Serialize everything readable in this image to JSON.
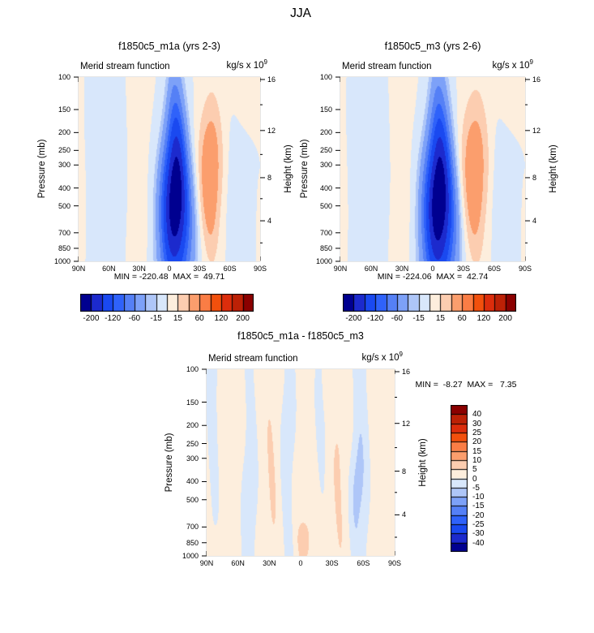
{
  "chart_data": {
    "type": "heatmap",
    "suptitle": "JJA",
    "xlabel_ticks": [
      "90N",
      "60N",
      "30N",
      "0",
      "30S",
      "60S",
      "90S"
    ],
    "pressure_ticks": [
      "100",
      "150",
      "200",
      "250",
      "300",
      "400",
      "500",
      "700",
      "850",
      "1000"
    ],
    "height_ticks": [
      "16",
      "12",
      "8",
      "4"
    ],
    "palette": [
      "#000090",
      "#1c2acd",
      "#1a49f0",
      "#2f62fa",
      "#5580f6",
      "#7da1f8",
      "#aec6f8",
      "#d8e7fb",
      "#fdeedd",
      "#fccdb0",
      "#fb9e6d",
      "#fa7d45",
      "#f2500d",
      "#dc2d0c",
      "#bc2106",
      "#8b0000"
    ],
    "colorbar_main_labels": [
      "-200",
      "-120",
      "-60",
      "-15",
      "15",
      "60",
      "120",
      "200"
    ],
    "colorbar_diff_labels": [
      "40",
      "30",
      "25",
      "20",
      "15",
      "10",
      "5",
      "0",
      "-5",
      "-10",
      "-15",
      "-20",
      "-25",
      "-30",
      "-40"
    ],
    "panels": [
      {
        "title": "f1850c5_m1a (yrs 2-3)",
        "field_title": "Merid stream function",
        "units": "kg/s x 10",
        "units_exp": "9",
        "ylabel": "Pressure (mb)",
        "ylabel_right": "Height (km)",
        "min": -220.48,
        "max": 49.71,
        "minmax_label": "MIN = -220.48  MAX =  49.71",
        "levels": [
          -200,
          -160,
          -120,
          -90,
          -60,
          -30,
          -15,
          0,
          15,
          30,
          60,
          90,
          120,
          160,
          200
        ],
        "wobble": 1.0,
        "cells": [
          [
            -238,
            -6,
            9,
            0.65,
            0.52,
            6
          ],
          [
            52,
            -41,
            11,
            0.55,
            0.42,
            0
          ],
          [
            -9,
            62,
            20,
            0.5,
            10,
            0
          ],
          [
            9,
            33,
            10,
            0.5,
            10,
            0
          ],
          [
            8,
            90,
            6,
            0.5,
            10,
            0
          ],
          [
            -9,
            -70,
            14,
            0.65,
            0.42,
            0
          ],
          [
            6,
            -76,
            16,
            0.05,
            0.32,
            0
          ],
          [
            7,
            -90,
            3.5,
            0.9,
            0.25,
            0
          ],
          [
            -8,
            -64,
            5,
            0.6,
            0.25,
            0
          ]
        ]
      },
      {
        "title": "f1850c5_m3 (yrs 2-6)",
        "field_title": "Merid stream function",
        "units": "kg/s x 10",
        "units_exp": "9",
        "ylabel": "Pressure (mb)",
        "ylabel_right": "Height (km)",
        "min": -224.06,
        "max": 42.74,
        "minmax_label": "MIN = -224.06  MAX =  42.74",
        "levels": [
          -200,
          -160,
          -120,
          -90,
          -60,
          -30,
          -15,
          0,
          15,
          30,
          60,
          90,
          120,
          160,
          200
        ],
        "wobble": 1.0,
        "cells": [
          [
            -242,
            -6,
            9.5,
            0.66,
            0.52,
            6
          ],
          [
            50,
            -41,
            12.5,
            0.55,
            0.44,
            0
          ],
          [
            -9,
            62,
            20,
            0.5,
            10,
            0
          ],
          [
            9,
            33,
            10,
            0.5,
            10,
            0
          ],
          [
            8,
            90,
            6,
            0.5,
            10,
            0
          ],
          [
            -9,
            -70,
            14,
            0.65,
            0.42,
            0
          ],
          [
            6,
            -76,
            16,
            0.05,
            0.32,
            0
          ],
          [
            7,
            -90,
            3.5,
            0.9,
            0.25,
            0
          ],
          [
            -8,
            -64,
            5,
            0.62,
            0.25,
            0
          ],
          [
            -8,
            50,
            3.5,
            0.45,
            0.35,
            0
          ]
        ]
      },
      {
        "title": "f1850c5_m1a - f1850c5_m3",
        "field_title": "Merid stream function",
        "units": "kg/s x 10",
        "units_exp": "9",
        "ylabel": "Pressure (mb)",
        "ylabel_right": "Height (km)",
        "min": -8.27,
        "max": 7.35,
        "minmax_label": "MIN =  -8.27  MAX =   7.35",
        "levels": [
          -40,
          -30,
          -25,
          -20,
          -15,
          -10,
          -5,
          0,
          5,
          10,
          15,
          20,
          25,
          30,
          40
        ],
        "wobble": 2.2,
        "cells": [
          [
            3.2,
            0,
            300,
            0.5,
            10,
            0
          ],
          [
            -6.5,
            84,
            6.5,
            0.35,
            0.55,
            0
          ],
          [
            -6.5,
            49,
            6,
            0.5,
            10,
            2
          ],
          [
            -6,
            12,
            7,
            0.5,
            10,
            0
          ],
          [
            -5.5,
            -19,
            6,
            0.3,
            0.5,
            0
          ],
          [
            -6.5,
            -57,
            9,
            0.5,
            10,
            0
          ],
          [
            -4,
            -54,
            5,
            0.6,
            0.3,
            0
          ],
          [
            -3,
            -22,
            3.5,
            0.33,
            0.12,
            0
          ],
          [
            4.5,
            28,
            4,
            0.55,
            0.3,
            0
          ],
          [
            4.5,
            -37,
            4,
            0.68,
            0.3,
            0
          ],
          [
            4,
            -4,
            7,
            0.93,
            0.12,
            0
          ]
        ]
      }
    ]
  }
}
